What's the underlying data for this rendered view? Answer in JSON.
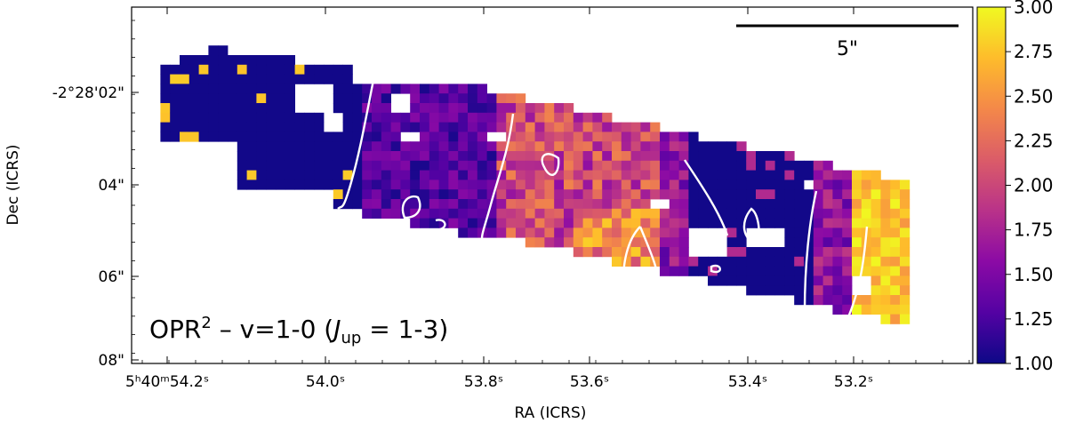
{
  "chart_data": {
    "type": "heatmap",
    "title": "",
    "panel_label": {
      "prefix": "OPR",
      "sup": "2",
      "mid": " – v=1-0 (",
      "j": "J",
      "sub": "up",
      "suffix": " = 1-3)"
    },
    "xlabel": "RA (ICRS)",
    "ylabel": "Dec (ICRS)",
    "x_ticks": [
      {
        "label": "5ʰ40ᵐ54.2ˢ"
      },
      {
        "label": "54.0ˢ"
      },
      {
        "label": "53.8ˢ"
      },
      {
        "label": "53.6ˢ"
      },
      {
        "label": "53.4ˢ"
      },
      {
        "label": "53.2ˢ"
      }
    ],
    "y_ticks": [
      {
        "label": "-2°28'02\""
      },
      {
        "label": "04\""
      },
      {
        "label": "06\""
      },
      {
        "label": "08\""
      }
    ],
    "scale_bar": {
      "label": "5\""
    },
    "colorbar": {
      "vmin": 1.0,
      "vmax": 3.0,
      "cmap": "plasma",
      "tick_labels": [
        "1.00",
        "1.25",
        "1.50",
        "1.75",
        "2.00",
        "2.25",
        "2.50",
        "2.75",
        "3.00"
      ]
    },
    "contour_color": "#ffffff",
    "nodata_color": "#ffffff"
  }
}
